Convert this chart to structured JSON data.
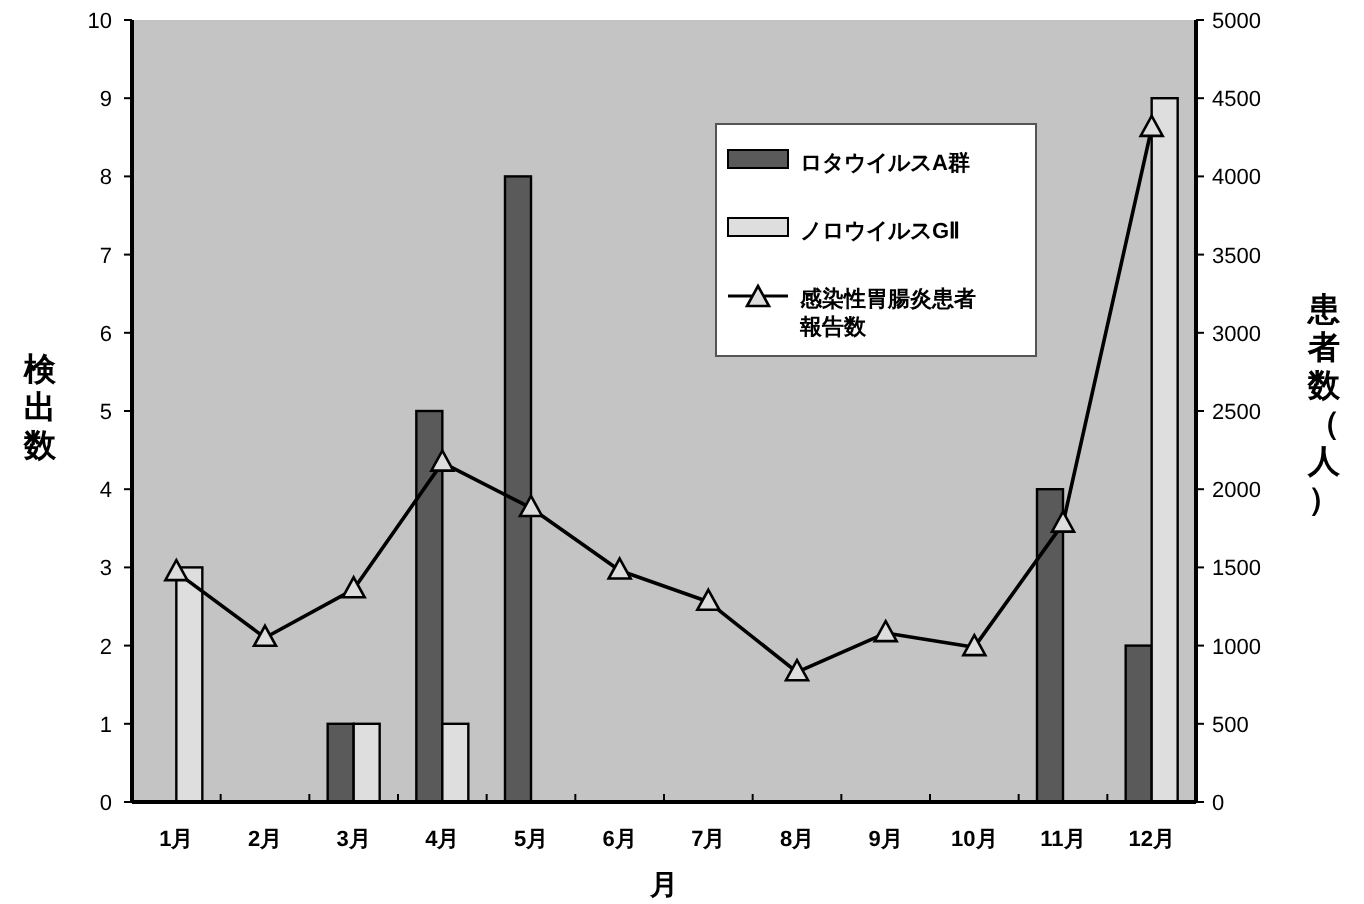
{
  "chart_data": {
    "type": "bar",
    "xlabel": "月",
    "ylabel": "検出数",
    "y2label": "患者数（人）",
    "categories": [
      "1月",
      "2月",
      "3月",
      "4月",
      "5月",
      "6月",
      "7月",
      "8月",
      "9月",
      "10月",
      "11月",
      "12月"
    ],
    "series": [
      {
        "name": "ロタウイルスA群",
        "color": "#5a5a5a",
        "values": [
          0,
          0,
          1,
          5,
          8,
          0,
          0,
          0,
          0,
          0,
          4,
          2
        ]
      },
      {
        "name": "ノロウイルスGⅡ",
        "color": "#dedede",
        "values": [
          3,
          0,
          1,
          1,
          0,
          0,
          0,
          0,
          0,
          0,
          0,
          9
        ]
      },
      {
        "name": "感染性胃腸炎患者報告数",
        "type": "line",
        "axis": "y2",
        "color": "#000000",
        "marker": "triangle",
        "line_style": "solid",
        "values": [
          1470,
          1050,
          1360,
          2170,
          1880,
          1480,
          1280,
          830,
          1080,
          990,
          1780,
          4310
        ]
      }
    ],
    "ylim": [
      0,
      10
    ],
    "yticks": [
      0,
      1,
      2,
      3,
      4,
      5,
      6,
      7,
      8,
      9,
      10
    ],
    "y2lim": [
      0,
      5000
    ],
    "y2ticks": [
      0,
      500,
      1000,
      1500,
      2000,
      2500,
      3000,
      3500,
      4000,
      4500,
      5000
    ],
    "grid": false,
    "legend": "top right"
  }
}
